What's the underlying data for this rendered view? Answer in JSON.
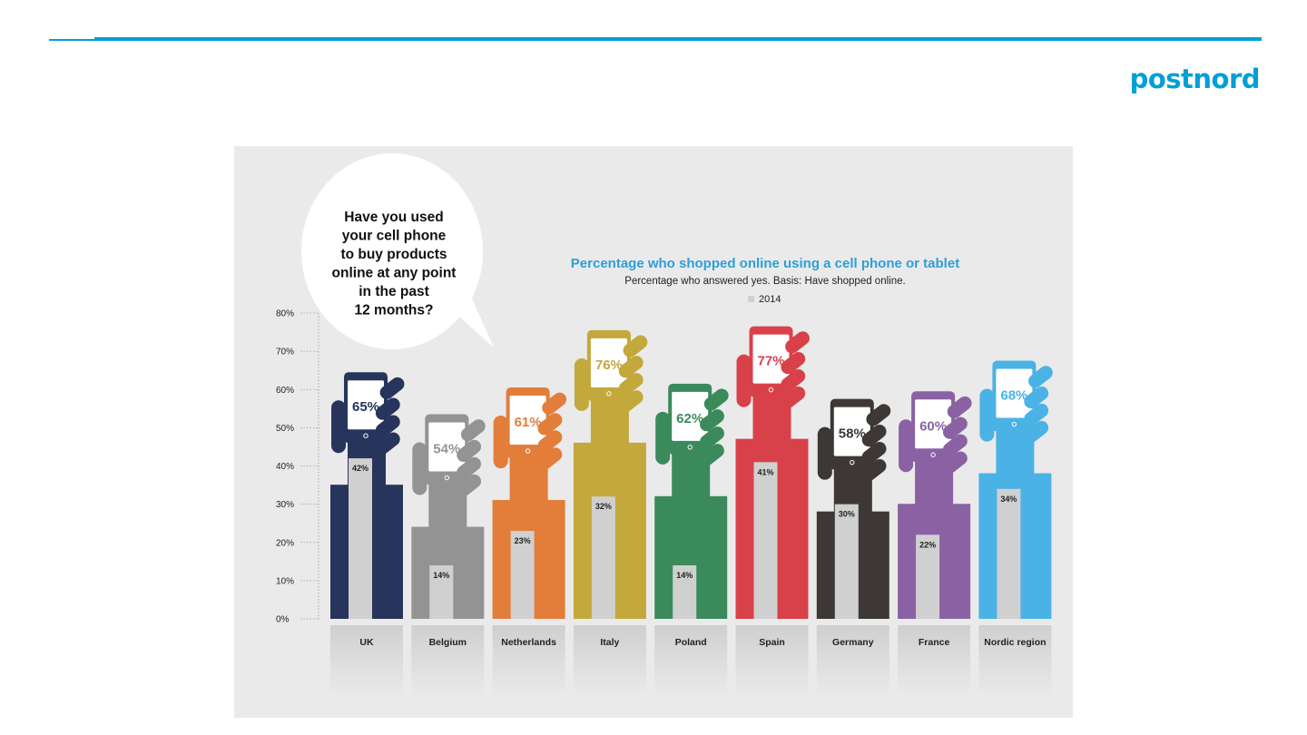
{
  "header": {
    "logo_text": "postnord",
    "accent_color": "#00a0d6"
  },
  "bubble": {
    "lines": [
      "Have you used",
      "your cell phone",
      "to buy products",
      "online at any point",
      "in the past",
      "12 months?"
    ]
  },
  "chart_data": {
    "type": "bar",
    "title": "Percentage who shopped online using a cell phone or tablet",
    "subtitle": "Percentage who answered yes. Basis: Have shopped online.",
    "legend": [
      {
        "name": "2014",
        "color": "#d0d0d0"
      }
    ],
    "ylim": [
      0,
      80
    ],
    "yticks": [
      "0%",
      "10%",
      "20%",
      "30%",
      "40%",
      "50%",
      "60%",
      "70%",
      "80%"
    ],
    "categories": [
      "UK",
      "Belgium",
      "Netherlands",
      "Italy",
      "Poland",
      "Spain",
      "Germany",
      "France",
      "Nordic region"
    ],
    "colors": [
      "#27355c",
      "#939393",
      "#e27d3a",
      "#c3a83c",
      "#3b8a5b",
      "#d9414a",
      "#3d3835",
      "#8a62a3",
      "#4bb2e6"
    ],
    "series": [
      {
        "values": [
          65,
          54,
          61,
          76,
          62,
          77,
          58,
          60,
          68
        ],
        "labels": [
          "65%",
          "54%",
          "61%",
          "76%",
          "62%",
          "77%",
          "58%",
          "60%",
          "68%"
        ]
      },
      {
        "name": "2014",
        "values": [
          42,
          14,
          23,
          32,
          14,
          41,
          30,
          22,
          34
        ],
        "labels": [
          "42%",
          "14%",
          "23%",
          "32%",
          "14%",
          "41%",
          "30%",
          "22%",
          "34%"
        ]
      }
    ]
  }
}
